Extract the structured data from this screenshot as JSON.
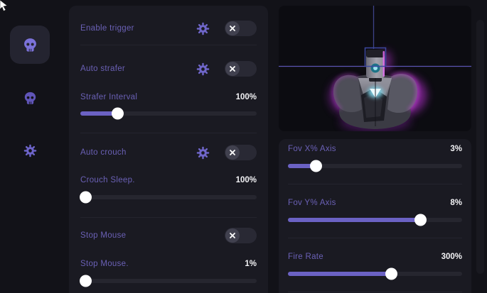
{
  "theme": {
    "background": "#121218",
    "panel": "#1a1a22",
    "viewer_background": "#0c0c11",
    "accent": "#6b62c4",
    "label_color": "#6a60b5",
    "value_color": "#f3f3f6"
  },
  "sidebar": {
    "items": [
      {
        "icon": "skull-icon",
        "active": true
      },
      {
        "icon": "skull-icon",
        "active": false
      },
      {
        "icon": "gear-icon",
        "active": false
      }
    ]
  },
  "settings_panel": {
    "rows": [
      {
        "type": "toggle",
        "label": "Enable trigger",
        "state": "off",
        "has_gear": true
      },
      {
        "type": "toggle",
        "label": "Auto strafer",
        "state": "off",
        "has_gear": true
      },
      {
        "type": "slider",
        "label": "Strafer Interval",
        "value": "100%",
        "fill_percent": 21
      },
      {
        "type": "toggle",
        "label": "Auto crouch",
        "state": "off",
        "has_gear": true
      },
      {
        "type": "slider",
        "label": "Crouch Sleep.",
        "value": "100%",
        "fill_percent": 3
      },
      {
        "type": "toggle",
        "label": "Stop Mouse",
        "state": "off",
        "has_gear": false
      },
      {
        "type": "slider",
        "label": "Stop Mouse.",
        "value": "1%",
        "fill_percent": 3
      }
    ]
  },
  "viewer_panel": {
    "subject": "robot-bust-preview",
    "crosshair_color": "#5b55b2",
    "fov_box_color": "#3c48a0",
    "rim_light_color": "#c936e6",
    "chest_glow_color": "#bfeaf6"
  },
  "aim_panel": {
    "rows": [
      {
        "label": "Fov X% Axis",
        "value": "3%",
        "fill_percent": 16
      },
      {
        "label": "Fov Y% Axis",
        "value": "8%",
        "fill_percent": 76
      },
      {
        "label": "Fire Rate",
        "value": "300%",
        "fill_percent": 59
      }
    ]
  }
}
